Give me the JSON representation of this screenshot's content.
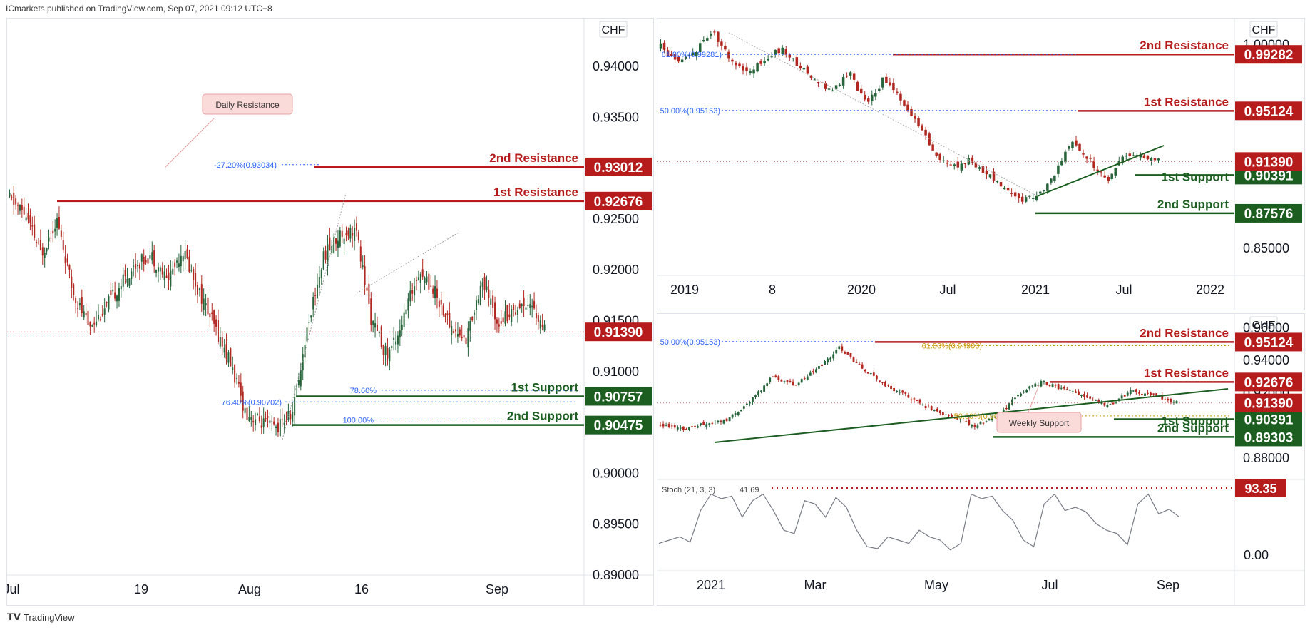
{
  "header": "ICmarkets published on TradingView.com, Sep 07, 2021 09:12 UTC+8",
  "footer": "TradingView",
  "colors": {
    "resistance": "#b71c1c",
    "support": "#1b5e20",
    "bull": "#26643a",
    "bear": "#b2271f",
    "fib": "#2962ff",
    "fib_gold": "#c79a00"
  },
  "chart_data": [
    {
      "type": "candlestick",
      "timeframe_context": "daily",
      "currency_label": "CHF",
      "x_tick_labels": [
        "Jul",
        "19",
        "Aug",
        "16",
        "Sep"
      ],
      "y_tick_labels": [
        "0.94000",
        "0.93500",
        "0.92500",
        "0.92000",
        "0.91500",
        "0.91000",
        "0.90000",
        "0.89500",
        "0.89000"
      ],
      "ylim": [
        0.89,
        0.944
      ],
      "current_price": "0.91390",
      "levels": [
        {
          "name": "2nd Resistance",
          "value": 0.93012,
          "label": "0.93012",
          "kind": "resistance"
        },
        {
          "name": "1st Resistance",
          "value": 0.92676,
          "label": "0.92676",
          "kind": "resistance"
        },
        {
          "name": "1st Support",
          "value": 0.90757,
          "label": "0.90757",
          "kind": "support"
        },
        {
          "name": "2nd Support",
          "value": 0.90475,
          "label": "0.90475",
          "kind": "support"
        }
      ],
      "fib_labels": [
        "-27.20%(0.93034)",
        "78.60%",
        "76.40%(0.90702)",
        "100.00%"
      ],
      "callout": "Daily Resistance"
    },
    {
      "type": "candlestick",
      "timeframe_context": "weekly",
      "currency_label": "CHF",
      "x_tick_labels": [
        "2019",
        "8",
        "2020",
        "Jul",
        "2021",
        "Jul",
        "2022"
      ],
      "y_tick_labels": [
        "1.00000",
        "0.85000"
      ],
      "ylim": [
        0.83,
        1.015
      ],
      "current_price": "0.91390",
      "levels": [
        {
          "name": "2nd Resistance",
          "value": 0.99282,
          "label": "0.99282",
          "kind": "resistance"
        },
        {
          "name": "1st Resistance",
          "value": 0.95124,
          "label": "0.95124",
          "kind": "resistance"
        },
        {
          "name": "1st Support",
          "value": 0.90391,
          "label": "0.90391",
          "kind": "support"
        },
        {
          "name": "2nd Support",
          "value": 0.87576,
          "label": "0.87576",
          "kind": "support"
        }
      ],
      "fib_labels": [
        "61.80%(0.99281)",
        "50.00%(0.95153)"
      ]
    },
    {
      "type": "candlestick",
      "timeframe_context": "h4",
      "currency_label": "CHF",
      "x_tick_labels": [
        "2021",
        "Mar",
        "May",
        "Jul",
        "Sep"
      ],
      "y_tick_labels": [
        "0.96000",
        "0.94000",
        "0.92000",
        "0.88000"
      ],
      "ylim": [
        0.87,
        0.965
      ],
      "current_price": "0.91390",
      "levels": [
        {
          "name": "2nd Resistance",
          "value": 0.95124,
          "label": "0.95124",
          "kind": "resistance"
        },
        {
          "name": "1st Resistance",
          "value": 0.92676,
          "label": "0.92676",
          "kind": "resistance"
        },
        {
          "name": "1st Support",
          "value": 0.90391,
          "label": "0.90391",
          "kind": "support"
        },
        {
          "name": "2nd Support",
          "value": 0.89303,
          "label": "0.89303",
          "kind": "support"
        }
      ],
      "fib_labels": [
        "50.00%(0.95153)",
        "61.80%(0.94903)",
        "50.00%(0.90593)"
      ],
      "callout": "Weekly Support",
      "oscillator": {
        "label": "Stoch (21, 3, 3)",
        "value_text": "41.69",
        "level_value": "93.35",
        "y_tick_labels": [
          "0.00"
        ]
      }
    }
  ]
}
